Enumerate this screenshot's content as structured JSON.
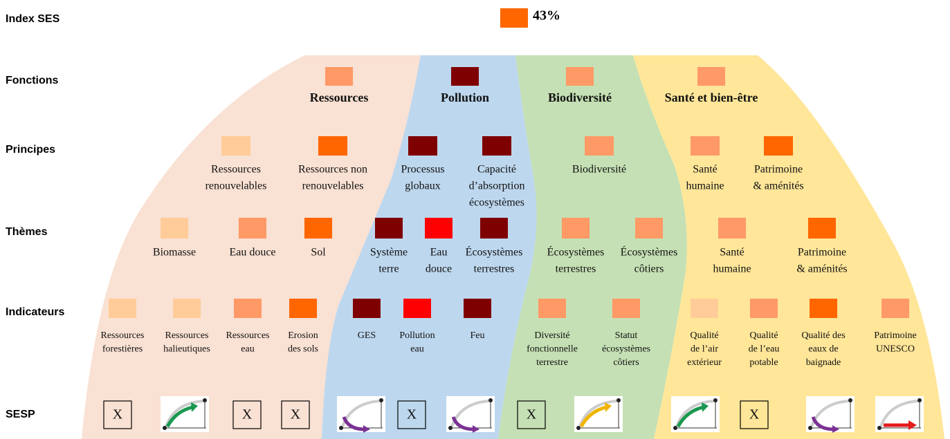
{
  "rows": [
    "Index SES",
    "Fonctions",
    "Principes",
    "Thèmes",
    "Indicateurs",
    "SESP"
  ],
  "index": {
    "value": "43%",
    "color": "#ff6600"
  },
  "regions": [
    {
      "color": "#f9e1d3"
    },
    {
      "color": "#bdd7ee"
    },
    {
      "color": "#c5e0b4"
    },
    {
      "color": "#ffe699"
    }
  ],
  "fonctions": [
    {
      "label": [
        "Ressources"
      ],
      "color": "#ff9966"
    },
    {
      "label": [
        "Pollution"
      ],
      "color": "#7f0000"
    },
    {
      "label": [
        "Biodiversité"
      ],
      "color": "#ff9966"
    },
    {
      "label": [
        "Santé et bien-être"
      ],
      "color": "#ff9966"
    }
  ],
  "principes": [
    {
      "label": [
        "Ressources",
        "renouvelables"
      ],
      "color": "#ffcc99"
    },
    {
      "label": [
        "Ressources non",
        "renouvelables"
      ],
      "color": "#ff6600"
    },
    {
      "label": [
        "Processus",
        "globaux"
      ],
      "color": "#7f0000"
    },
    {
      "label": [
        "Capacité",
        "d’absorption",
        "écosystèmes"
      ],
      "color": "#7f0000"
    },
    {
      "label": [
        "Biodiversité"
      ],
      "color": "#ff9966"
    },
    {
      "label": [
        "Santé",
        "humaine"
      ],
      "color": "#ff9966"
    },
    {
      "label": [
        "Patrimoine",
        "& aménités"
      ],
      "color": "#ff6600"
    }
  ],
  "themes": [
    {
      "label": [
        "Biomasse"
      ],
      "color": "#ffcc99"
    },
    {
      "label": [
        "Eau douce"
      ],
      "color": "#ff9966"
    },
    {
      "label": [
        "Sol"
      ],
      "color": "#ff6600"
    },
    {
      "label": [
        "Système",
        "terre"
      ],
      "color": "#7f0000"
    },
    {
      "label": [
        "Eau",
        "douce"
      ],
      "color": "#ff0000"
    },
    {
      "label": [
        "Écosystèmes",
        "terrestres"
      ],
      "color": "#7f0000"
    },
    {
      "label": [
        "Écosystèmes",
        "terrestres"
      ],
      "color": "#ff9966"
    },
    {
      "label": [
        "Écosystèmes",
        "côtiers"
      ],
      "color": "#ff9966"
    },
    {
      "label": [
        "Santé",
        "humaine"
      ],
      "color": "#ff9966"
    },
    {
      "label": [
        "Patrimoine",
        "& aménités"
      ],
      "color": "#ff6600"
    }
  ],
  "indicateurs": [
    {
      "label": [
        "Ressources",
        "forestières"
      ],
      "color": "#ffcc99"
    },
    {
      "label": [
        "Ressources",
        "halieutiques"
      ],
      "color": "#ffcc99"
    },
    {
      "label": [
        "Ressources",
        "eau"
      ],
      "color": "#ff9966"
    },
    {
      "label": [
        "Erosion",
        "des sols"
      ],
      "color": "#ff6600"
    },
    {
      "label": [
        "GES"
      ],
      "color": "#7f0000"
    },
    {
      "label": [
        "Pollution",
        "eau"
      ],
      "color": "#ff0000"
    },
    {
      "label": [
        "Feu"
      ],
      "color": "#7f0000"
    },
    {
      "label": [
        "Diversité",
        "fonctionnelle",
        "terrestre"
      ],
      "color": "#ff9966"
    },
    {
      "label": [
        "Statut",
        "écosystèmes",
        "côtiers"
      ],
      "color": "#ff9966"
    },
    {
      "label": [
        "Qualité",
        "de l’air",
        "extérieur"
      ],
      "color": "#ffcc99"
    },
    {
      "label": [
        "Qualité",
        "de l’eau",
        "potable"
      ],
      "color": "#ff9966"
    },
    {
      "label": [
        "Qualité des",
        "eaux de",
        "baignade"
      ],
      "color": "#ff6600"
    },
    {
      "label": [
        "Patrimoine",
        "UNESCO"
      ],
      "color": "#ff9966"
    }
  ],
  "sesp": [
    {
      "text": "X"
    },
    {
      "icon": "up",
      "color": "#1a9850"
    },
    {
      "text": "X"
    },
    {
      "text": "X"
    },
    {
      "icon": "down",
      "color": "#7b3294"
    },
    {
      "text": "X"
    },
    {
      "icon": "down",
      "color": "#7b3294"
    },
    {
      "text": "X"
    },
    {
      "icon": "up",
      "color": "#f0b400"
    },
    {
      "icon": "up",
      "color": "#1a9850"
    },
    {
      "text": "X"
    },
    {
      "icon": "down",
      "color": "#7b3294"
    },
    {
      "icon": "flat",
      "color": "#e41a1c"
    }
  ]
}
